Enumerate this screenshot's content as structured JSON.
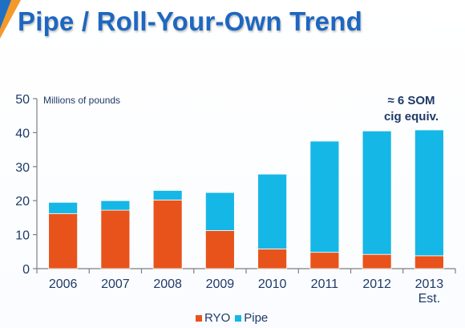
{
  "slide": {
    "title": "Pipe / Roll-Your-Own Trend"
  },
  "chart_data": {
    "type": "bar",
    "stacked": true,
    "units_label": "Millions of pounds",
    "annotation": [
      "≈ 6 SOM",
      "cig equiv."
    ],
    "categories": [
      [
        "2006"
      ],
      [
        "2007"
      ],
      [
        "2008"
      ],
      [
        "2009"
      ],
      [
        "2010"
      ],
      [
        "2011"
      ],
      [
        "2012"
      ],
      [
        "2013",
        "Est."
      ]
    ],
    "series": [
      {
        "name": "RYO",
        "color": "#e8531c",
        "values": [
          16.2,
          17.2,
          20.2,
          11.2,
          5.8,
          4.8,
          4.2,
          3.8
        ]
      },
      {
        "name": "Pipe",
        "color": "#15b7e6",
        "values": [
          3.3,
          2.8,
          2.8,
          11.2,
          22.0,
          32.7,
          36.3,
          37.0
        ]
      }
    ],
    "yticks": [
      0,
      10,
      20,
      30,
      40,
      50
    ],
    "ylim": [
      0,
      50
    ],
    "legend_position": "bottom",
    "grid": false
  }
}
